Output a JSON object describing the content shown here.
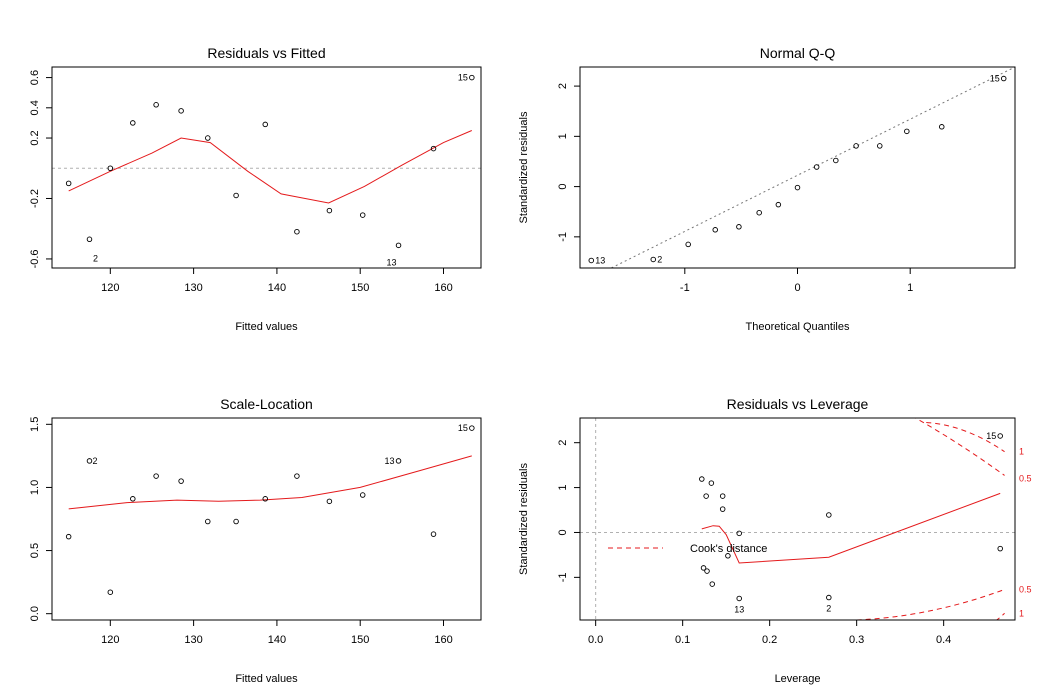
{
  "chart_data": [
    {
      "type": "scatter",
      "title": "Residuals vs Fitted",
      "xlabel": "Fitted values",
      "ylabel": "",
      "xlim": [
        113,
        164.5
      ],
      "ylim": [
        -0.66,
        0.67
      ],
      "xticks": [
        120,
        130,
        140,
        150,
        160
      ],
      "yticks": [
        -0.6,
        -0.2,
        0.2,
        0.4,
        0.6
      ],
      "ytick_labels": [
        "-0.6",
        "-0.2",
        "0.2",
        "0.4",
        "0.6"
      ],
      "points": [
        {
          "x": 115,
          "y": -0.1
        },
        {
          "x": 117.5,
          "y": -0.47
        },
        {
          "x": 120,
          "y": 0.0
        },
        {
          "x": 122.7,
          "y": 0.3
        },
        {
          "x": 125.5,
          "y": 0.42
        },
        {
          "x": 128.5,
          "y": 0.38
        },
        {
          "x": 131.7,
          "y": 0.2
        },
        {
          "x": 135.1,
          "y": -0.18
        },
        {
          "x": 138.6,
          "y": 0.29
        },
        {
          "x": 142.4,
          "y": -0.42
        },
        {
          "x": 146.3,
          "y": -0.28
        },
        {
          "x": 150.3,
          "y": -0.31
        },
        {
          "x": 154.6,
          "y": -0.51
        },
        {
          "x": 158.8,
          "y": 0.13
        },
        {
          "x": 163.4,
          "y": 0.6
        }
      ],
      "smooth": {
        "name": "lowess",
        "x": [
          115,
          120,
          125,
          128.5,
          132,
          136.5,
          140.5,
          146.2,
          150.5,
          155,
          160,
          163.4
        ],
        "y": [
          -0.15,
          -0.02,
          0.1,
          0.2,
          0.17,
          -0.02,
          -0.17,
          -0.23,
          -0.12,
          0.02,
          0.17,
          0.25
        ]
      },
      "reference_line": {
        "y": 0
      },
      "point_labels": [
        {
          "text": "15",
          "x": 163.4,
          "y": 0.6
        },
        {
          "text": "2",
          "x": 117.5,
          "y": -0.47
        },
        {
          "text": "13",
          "x": 154.6,
          "y": -0.51
        }
      ]
    },
    {
      "type": "scatter",
      "title": "Normal Q-Q",
      "xlabel": "Theoretical Quantiles",
      "ylabel": "Standardized residuals",
      "xlim": [
        -1.93,
        1.93
      ],
      "ylim": [
        -1.62,
        2.38
      ],
      "xticks": [
        -1,
        0,
        1
      ],
      "xtick_labels": [
        "-1",
        "0",
        "1"
      ],
      "yticks": [
        -1,
        0,
        1,
        2
      ],
      "ytick_labels": [
        "-1",
        "0",
        "1",
        "2"
      ],
      "points": [
        {
          "x": -1.83,
          "y": -1.47
        },
        {
          "x": -1.28,
          "y": -1.45
        },
        {
          "x": -0.97,
          "y": -1.15
        },
        {
          "x": -0.73,
          "y": -0.86
        },
        {
          "x": -0.52,
          "y": -0.8
        },
        {
          "x": -0.34,
          "y": -0.52
        },
        {
          "x": -0.17,
          "y": -0.36
        },
        {
          "x": 0.0,
          "y": -0.02
        },
        {
          "x": 0.17,
          "y": 0.39
        },
        {
          "x": 0.34,
          "y": 0.52
        },
        {
          "x": 0.52,
          "y": 0.81
        },
        {
          "x": 0.73,
          "y": 0.81
        },
        {
          "x": 0.97,
          "y": 1.1
        },
        {
          "x": 1.28,
          "y": 1.19
        },
        {
          "x": 1.83,
          "y": 2.15
        }
      ],
      "reference_line": {
        "x1": -1.93,
        "y1": -1.93,
        "x2": 1.93,
        "y2": 2.38
      },
      "point_labels": [
        {
          "text": "13",
          "x": -1.83,
          "y": -1.47
        },
        {
          "text": "2",
          "x": -1.28,
          "y": -1.45
        },
        {
          "text": "15",
          "x": 1.83,
          "y": 2.15
        }
      ]
    },
    {
      "type": "scatter",
      "title": "Scale-Location",
      "xlabel": "Fitted values",
      "ylabel": "",
      "xlim": [
        113,
        164.5
      ],
      "ylim": [
        -0.05,
        1.55
      ],
      "xticks": [
        120,
        130,
        140,
        150,
        160
      ],
      "yticks": [
        0.0,
        0.5,
        1.0,
        1.5
      ],
      "ytick_labels": [
        "0.0",
        "0.5",
        "1.0",
        "1.5"
      ],
      "points": [
        {
          "x": 115,
          "y": 0.61
        },
        {
          "x": 117.5,
          "y": 1.21
        },
        {
          "x": 120,
          "y": 0.17
        },
        {
          "x": 122.7,
          "y": 0.91
        },
        {
          "x": 125.5,
          "y": 1.09
        },
        {
          "x": 128.5,
          "y": 1.05
        },
        {
          "x": 131.7,
          "y": 0.73
        },
        {
          "x": 135.1,
          "y": 0.73
        },
        {
          "x": 138.6,
          "y": 0.91
        },
        {
          "x": 142.4,
          "y": 1.09
        },
        {
          "x": 146.3,
          "y": 0.89
        },
        {
          "x": 150.3,
          "y": 0.94
        },
        {
          "x": 154.6,
          "y": 1.21
        },
        {
          "x": 158.8,
          "y": 0.63
        },
        {
          "x": 163.4,
          "y": 1.47
        }
      ],
      "smooth": {
        "name": "lowess",
        "x": [
          115,
          122,
          128,
          133,
          138,
          143,
          150,
          157,
          163.4
        ],
        "y": [
          0.83,
          0.88,
          0.9,
          0.89,
          0.9,
          0.92,
          1.0,
          1.13,
          1.25
        ]
      },
      "point_labels": [
        {
          "text": "15",
          "x": 163.4,
          "y": 1.47
        },
        {
          "text": "2",
          "x": 117.5,
          "y": 1.21
        },
        {
          "text": "13",
          "x": 154.6,
          "y": 1.21
        }
      ]
    },
    {
      "type": "scatter",
      "title": "Residuals vs Leverage",
      "xlabel": "Leverage",
      "ylabel": "Standardized residuals",
      "xlim": [
        -0.018,
        0.482
      ],
      "ylim": [
        -1.95,
        2.55
      ],
      "xticks": [
        0.0,
        0.1,
        0.2,
        0.3,
        0.4
      ],
      "xtick_labels": [
        "0.0",
        "0.1",
        "0.2",
        "0.3",
        "0.4"
      ],
      "yticks": [
        -1,
        0,
        1,
        2
      ],
      "ytick_labels": [
        "-1",
        "0",
        "1",
        "2"
      ],
      "points": [
        {
          "x": 0.122,
          "y": 1.19
        },
        {
          "x": 0.127,
          "y": 0.81
        },
        {
          "x": 0.133,
          "y": 1.1
        },
        {
          "x": 0.146,
          "y": 0.81
        },
        {
          "x": 0.146,
          "y": 0.52
        },
        {
          "x": 0.152,
          "y": -0.52
        },
        {
          "x": 0.124,
          "y": -0.79
        },
        {
          "x": 0.128,
          "y": -0.86
        },
        {
          "x": 0.134,
          "y": -1.15
        },
        {
          "x": 0.165,
          "y": -0.02
        },
        {
          "x": 0.165,
          "y": -1.47
        },
        {
          "x": 0.268,
          "y": 0.39
        },
        {
          "x": 0.268,
          "y": -1.45
        },
        {
          "x": 0.465,
          "y": -0.36
        },
        {
          "x": 0.465,
          "y": 2.15
        }
      ],
      "smooth": {
        "name": "lowess",
        "x": [
          0.122,
          0.135,
          0.142,
          0.15,
          0.165,
          0.268,
          0.465
        ],
        "y": [
          0.08,
          0.15,
          0.14,
          -0.05,
          -0.68,
          -0.55,
          0.87
        ]
      },
      "reference_lines": [
        {
          "y": 0
        },
        {
          "x": 0
        }
      ],
      "cooks_distance": [
        {
          "level": "0.5",
          "upper": [
            [
              0.28,
              3.4
            ],
            [
              0.47,
              1.27
            ]
          ],
          "lower": [
            [
              0.3,
              -1.95
            ],
            [
              0.47,
              -1.27
            ]
          ]
        },
        {
          "level": "1",
          "upper": [
            [
              0.38,
              2.45
            ],
            [
              0.47,
              1.8
            ]
          ],
          "lower": [
            [
              0.43,
              -2.05
            ],
            [
              0.47,
              -1.8
            ]
          ]
        }
      ],
      "contour_labels": [
        "1",
        "0.5",
        "0.5",
        "1"
      ],
      "legend": {
        "label": "Cook's distance",
        "placement": "center-left"
      },
      "point_labels": [
        {
          "text": "15",
          "x": 0.465,
          "y": 2.15
        },
        {
          "text": "13",
          "x": 0.165,
          "y": -1.47
        },
        {
          "text": "2",
          "x": 0.268,
          "y": -1.45
        }
      ]
    }
  ],
  "colors": {
    "points": "#000000",
    "smooth": "#e41a1c",
    "reference": "#b0b0b0",
    "contour": "#e41a1c"
  }
}
